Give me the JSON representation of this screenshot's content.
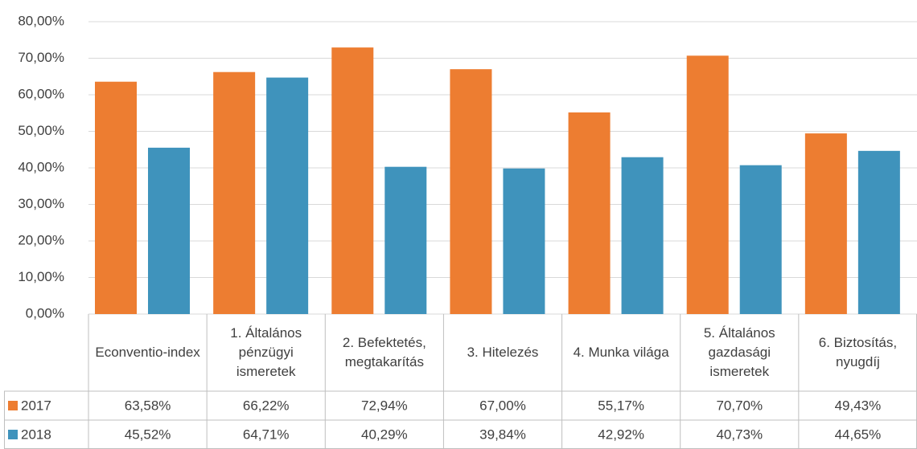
{
  "chart_data": {
    "type": "bar",
    "categories": [
      "Econventio-index",
      "1. Általános pénzügyi ismeretek",
      "2. Befektetés, megtakarítás",
      "3. Hitelezés",
      "4. Munka világa",
      "5. Általános gazdasági ismeretek",
      "6. Biztosítás, nyugdíj"
    ],
    "series": [
      {
        "name": "2017",
        "color": "#ed7d31",
        "values": [
          63.58,
          66.22,
          72.94,
          67.0,
          55.17,
          70.7,
          49.43
        ],
        "value_labels": [
          "63,58%",
          "66,22%",
          "72,94%",
          "67,00%",
          "55,17%",
          "70,70%",
          "49,43%"
        ]
      },
      {
        "name": "2018",
        "color": "#3f93bc",
        "values": [
          45.52,
          64.71,
          40.29,
          39.84,
          42.92,
          40.73,
          44.65
        ],
        "value_labels": [
          "45,52%",
          "64,71%",
          "40,29%",
          "39,84%",
          "42,92%",
          "40,73%",
          "44,65%"
        ]
      }
    ],
    "ylim": [
      0,
      80
    ],
    "yticks": [
      {
        "value": 0,
        "label": "0,00%"
      },
      {
        "value": 10,
        "label": "10,00%"
      },
      {
        "value": 20,
        "label": "20,00%"
      },
      {
        "value": 30,
        "label": "30,00%"
      },
      {
        "value": 40,
        "label": "40,00%"
      },
      {
        "value": 50,
        "label": "50,00%"
      },
      {
        "value": 60,
        "label": "60,00%"
      },
      {
        "value": 70,
        "label": "70,00%"
      },
      {
        "value": 80,
        "label": "80,00%"
      }
    ],
    "grid": true
  }
}
